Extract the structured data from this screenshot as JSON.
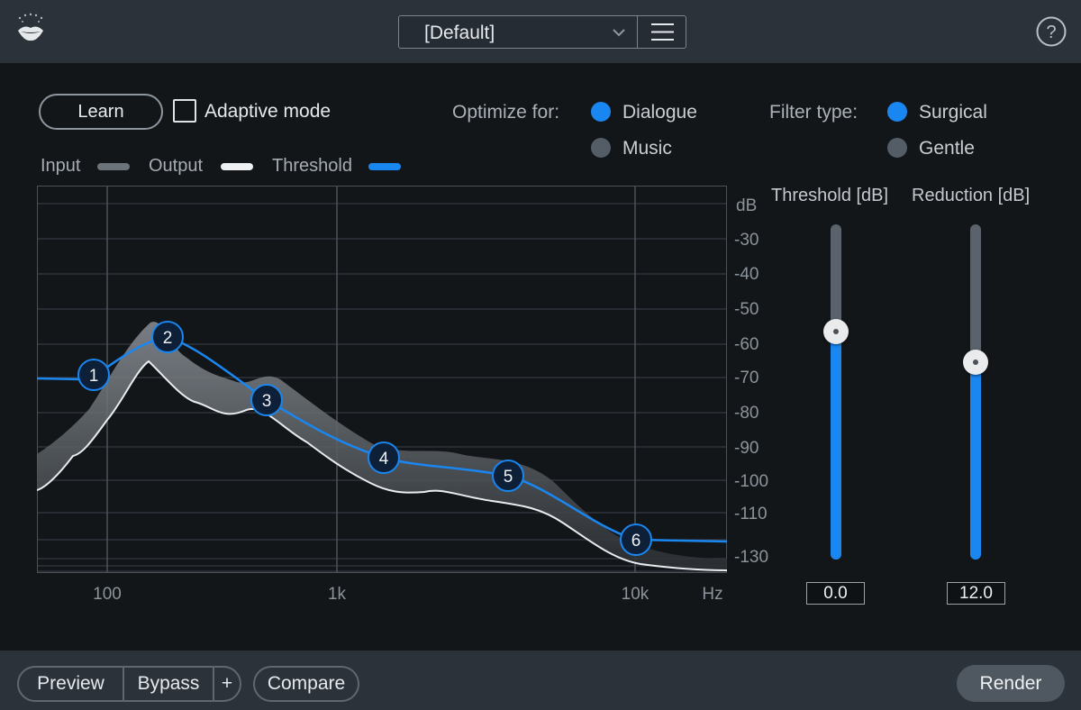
{
  "header": {
    "preset_name": "[Default]",
    "preset_dropdown_icon": "chevron-down-icon",
    "preset_menu_icon": "hamburger-menu-icon",
    "help_icon": "help-circle-icon",
    "logo_icon": "lips-logo-icon"
  },
  "controls": {
    "learn_label": "Learn",
    "adaptive_mode_label": "Adaptive mode",
    "adaptive_mode_checked": false,
    "optimize_label": "Optimize for:",
    "optimize_options": [
      {
        "label": "Dialogue",
        "selected": true
      },
      {
        "label": "Music",
        "selected": false
      }
    ],
    "filter_type_label": "Filter type:",
    "filter_options": [
      {
        "label": "Surgical",
        "selected": true
      },
      {
        "label": "Gentle",
        "selected": false
      }
    ]
  },
  "legend": {
    "input_label": "Input",
    "output_label": "Output",
    "threshold_label": "Threshold"
  },
  "graph": {
    "db_unit": "dB",
    "hz_unit": "Hz",
    "db_ticks": [
      "-30",
      "-40",
      "-50",
      "-60",
      "-70",
      "-80",
      "-90",
      "-100",
      "-110",
      "-130"
    ],
    "freq_ticks": [
      "100",
      "1k",
      "10k"
    ],
    "nodes": [
      "1",
      "2",
      "3",
      "4",
      "5",
      "6"
    ]
  },
  "sliders": {
    "threshold_label": "Threshold [dB]",
    "threshold_value": "0.0",
    "threshold_level": 0.68,
    "reduction_label": "Reduction [dB]",
    "reduction_value": "12.0",
    "reduction_level": 0.59
  },
  "footer": {
    "preview_label": "Preview",
    "bypass_label": "Bypass",
    "plus_label": "+",
    "compare_label": "Compare",
    "render_label": "Render"
  },
  "colors": {
    "accent": "#1a86f0",
    "panel": "#2b3239",
    "background": "#131619"
  }
}
